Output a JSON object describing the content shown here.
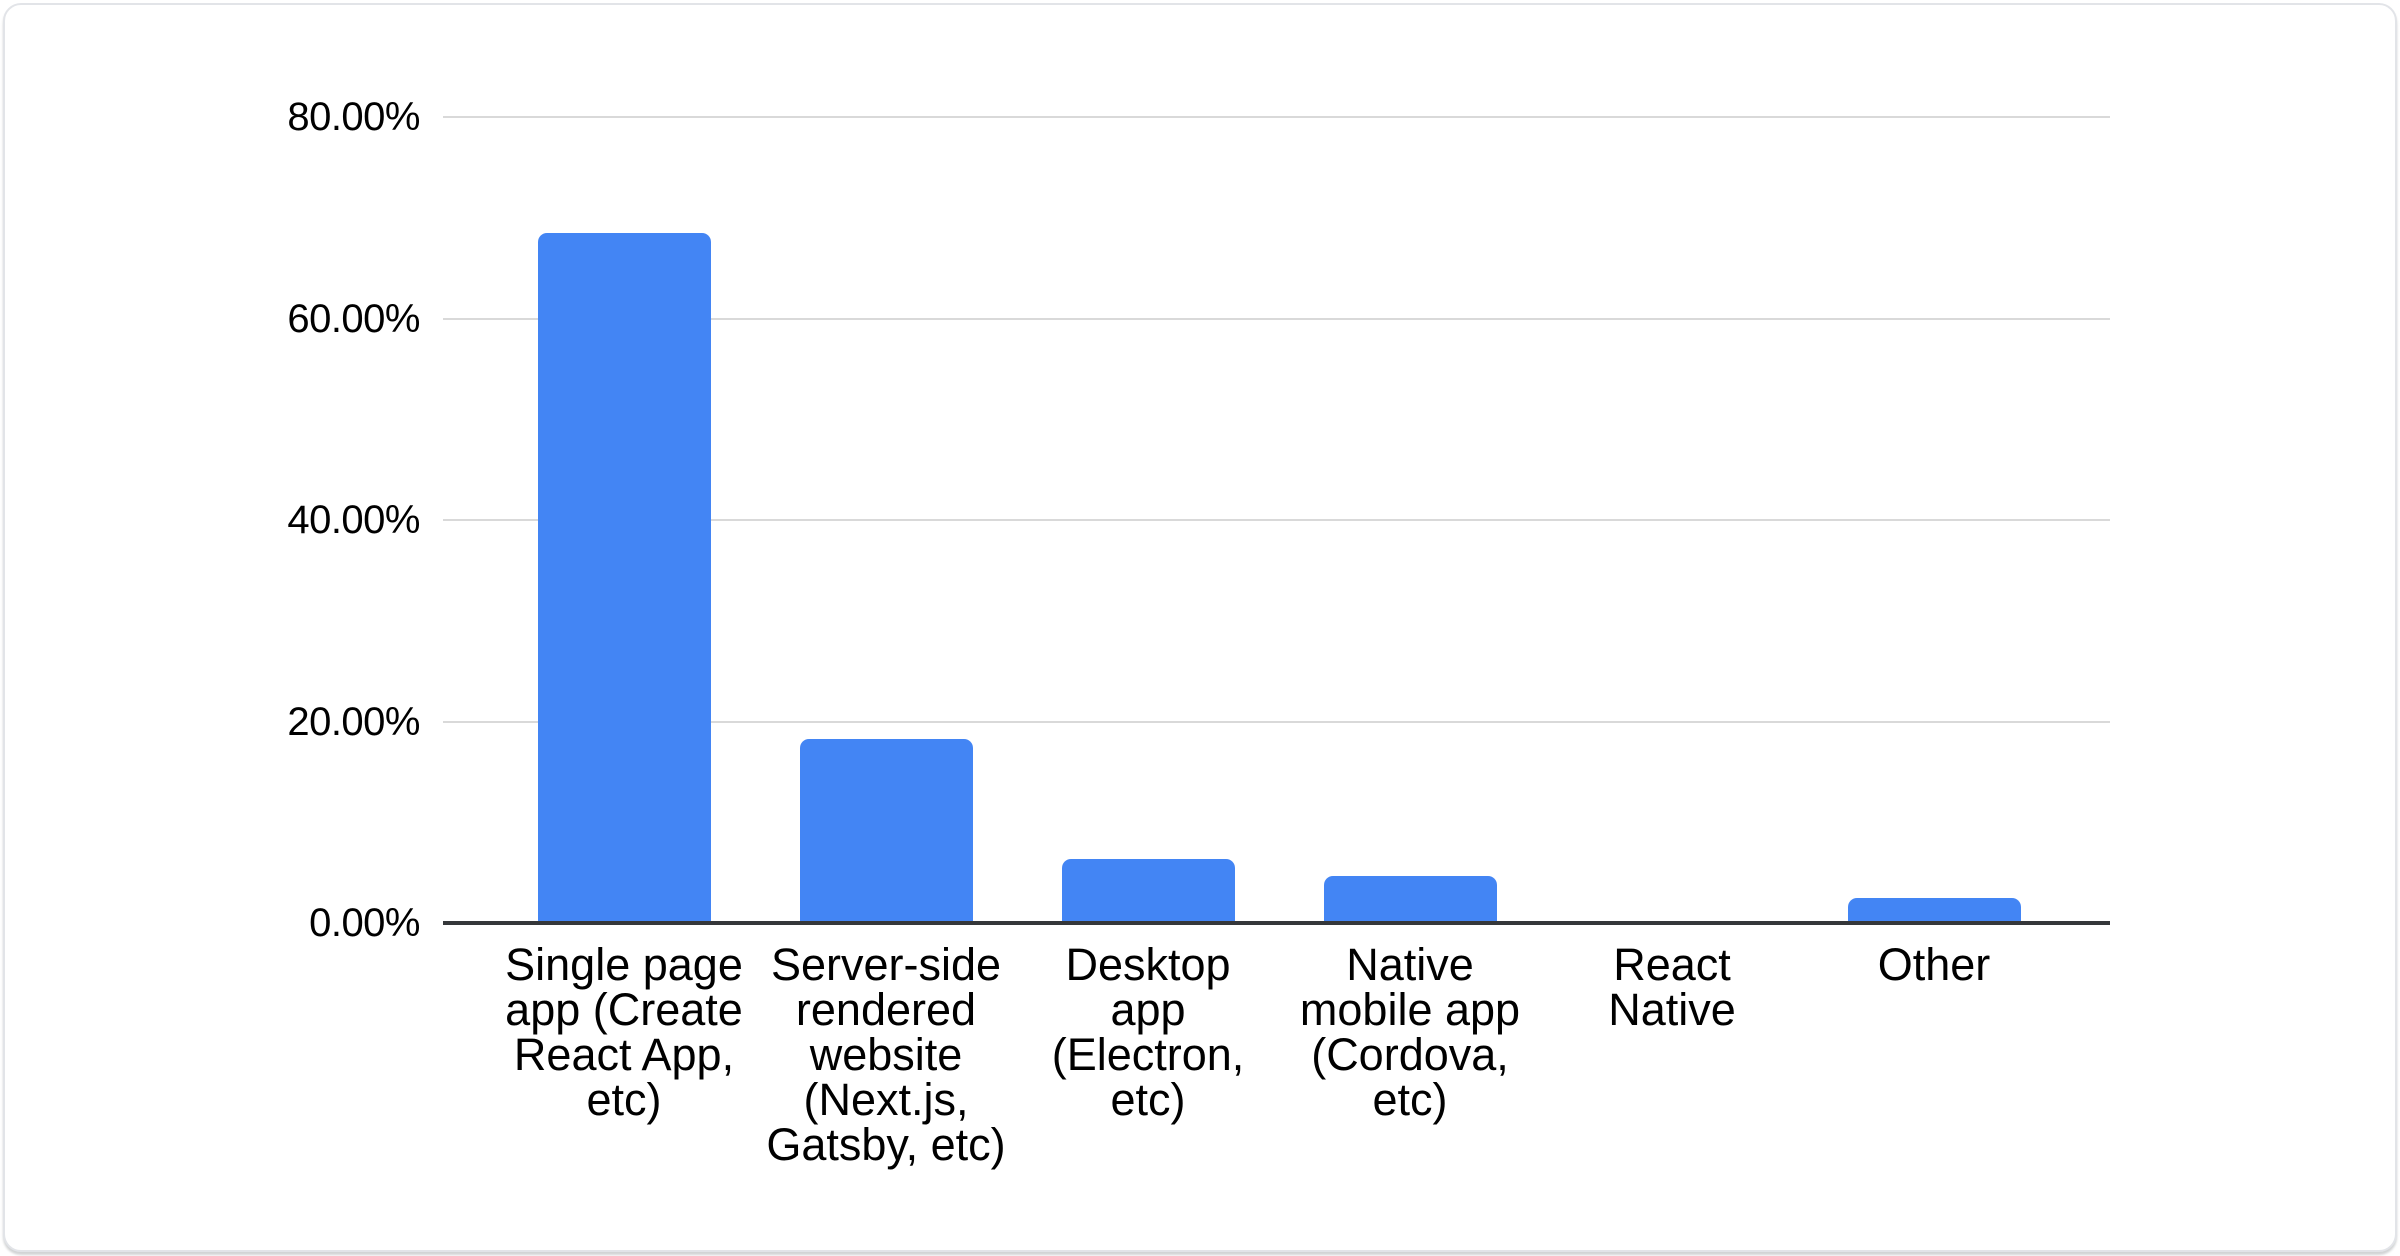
{
  "card": {
    "background": "#ffffff",
    "border_color": "#e2e4e8"
  },
  "chart_data": {
    "type": "bar",
    "title": "",
    "categories": [
      "Single page app (Create React App, etc)",
      "Server-side rendered website (Next.js, Gatsby, etc)",
      "Desktop app (Electron, etc)",
      "Native mobile app (Cordova, etc)",
      "React Native",
      "Other"
    ],
    "category_lines": [
      [
        "Single page",
        "app (Create",
        "React App,",
        "etc)"
      ],
      [
        "Server-side",
        "rendered",
        "website",
        "(Next.js,",
        "Gatsby, etc)"
      ],
      [
        "Desktop",
        "app",
        "(Electron,",
        "etc)"
      ],
      [
        "Native",
        "mobile app",
        "(Cordova,",
        "etc)"
      ],
      [
        "React",
        "Native"
      ],
      [
        "Other"
      ]
    ],
    "values": [
      68.4,
      18.2,
      6.3,
      4.6,
      0,
      2.4
    ],
    "unit": "%",
    "y_ticks": [
      "80.00%",
      "60.00%",
      "40.00%",
      "20.00%",
      "0.00%"
    ],
    "y_tick_values": [
      80,
      60,
      40,
      20,
      0
    ],
    "ylim": [
      0,
      80
    ],
    "xlabel": "",
    "ylabel": "",
    "grid": true,
    "legend_position": "none",
    "bar_color": "#4385f4",
    "gridline_color": "#d9d9d9",
    "axis_color": "#35373a",
    "label_color": "#000000"
  }
}
